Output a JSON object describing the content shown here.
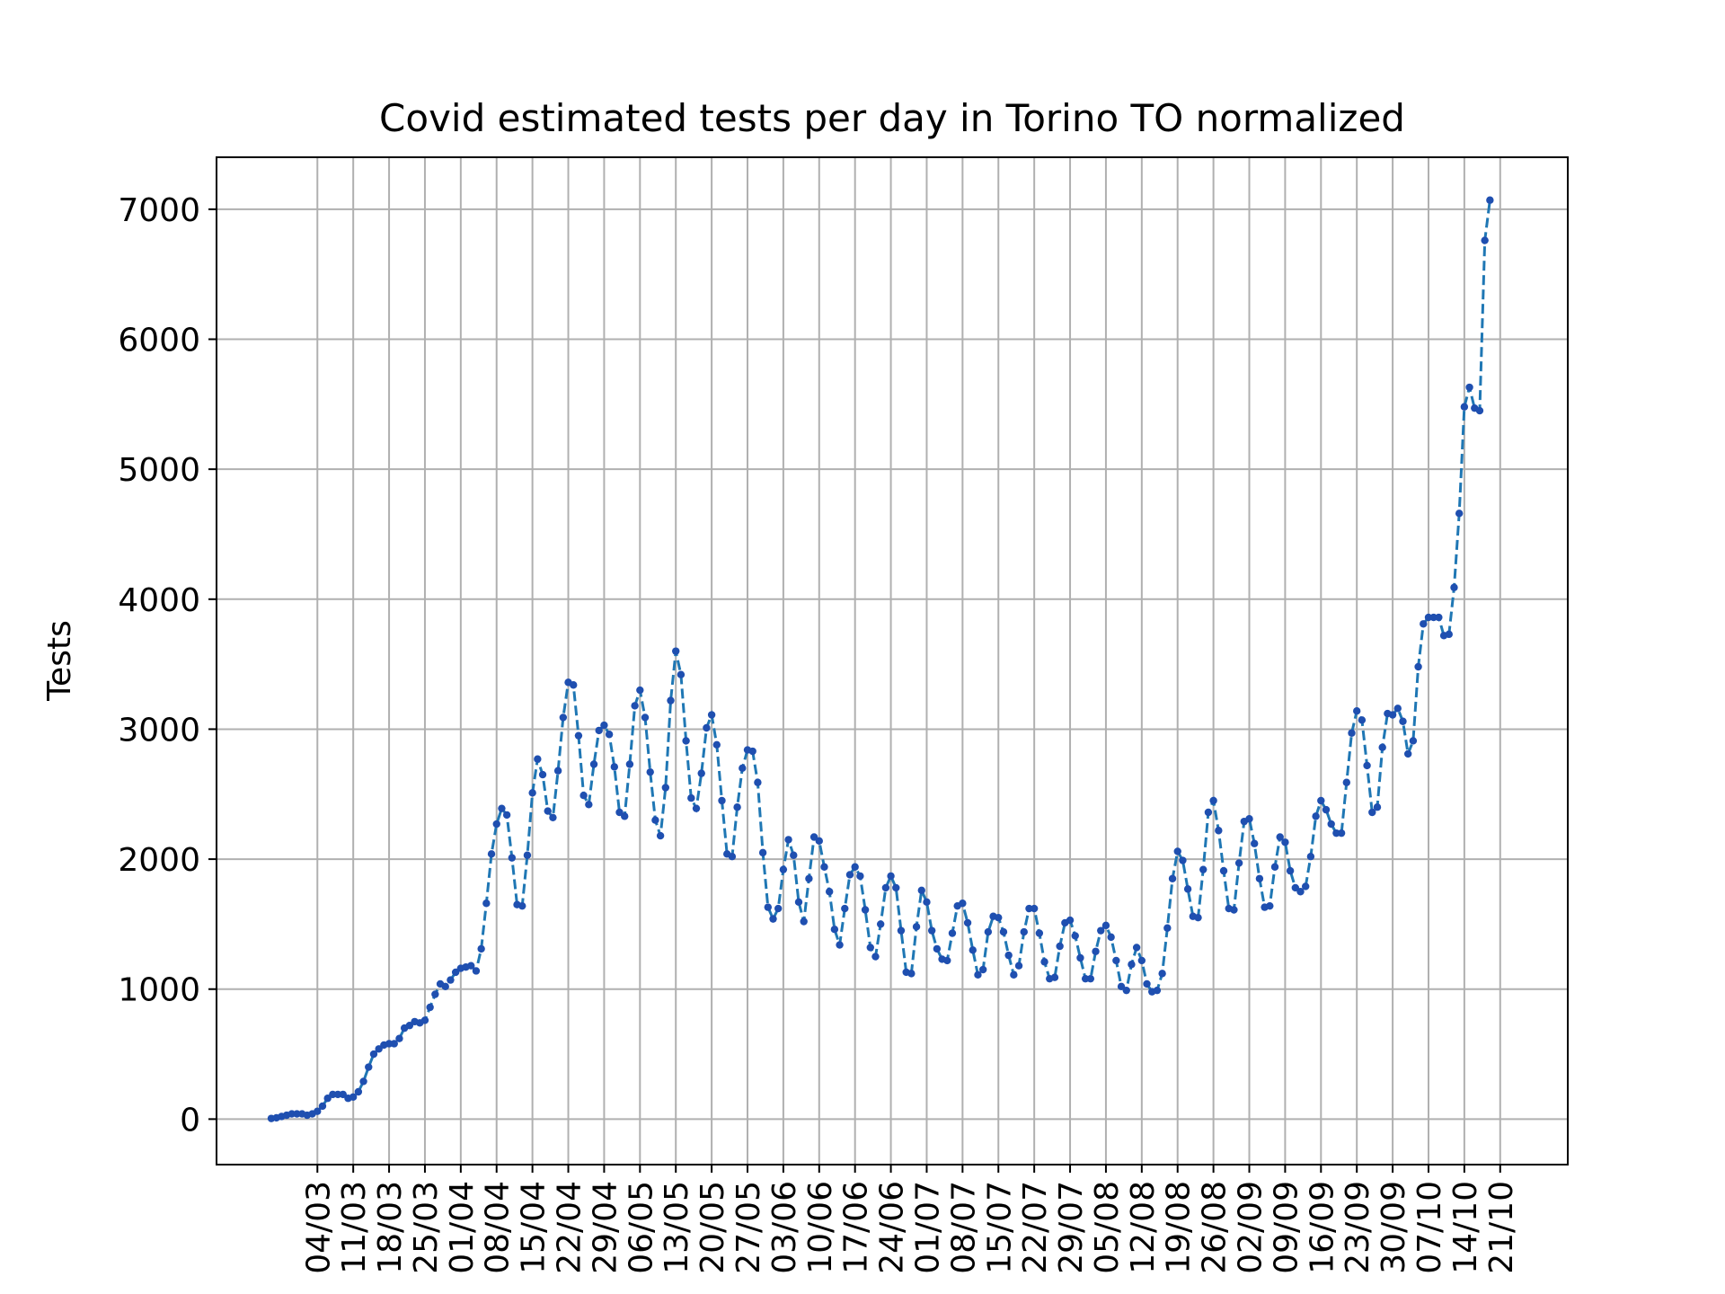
{
  "chart_data": {
    "type": "line",
    "title": "Covid estimated tests per day in Torino TO normalized",
    "xlabel": "",
    "ylabel": "Tests",
    "start_date": "2020-02-24",
    "grid": true,
    "legend": "none",
    "ylim": [
      -350,
      7400
    ],
    "yticks": [
      0,
      1000,
      2000,
      3000,
      4000,
      5000,
      6000,
      7000
    ],
    "xtick_labels": [
      "04/03",
      "11/03",
      "18/03",
      "25/03",
      "01/04",
      "08/04",
      "15/04",
      "22/04",
      "29/04",
      "06/05",
      "13/05",
      "20/05",
      "27/05",
      "03/06",
      "10/06",
      "17/06",
      "24/06",
      "01/07",
      "08/07",
      "15/07",
      "22/07",
      "29/07",
      "05/08",
      "12/08",
      "19/08",
      "26/08",
      "02/09",
      "09/09",
      "16/09",
      "23/09",
      "30/09",
      "07/10",
      "14/10",
      "21/10"
    ],
    "colors": {
      "line": "#1f77b4",
      "marker": "#1f4fb0",
      "grid": "#b0b0b0"
    },
    "series": [
      {
        "values": [
          5,
          10,
          20,
          30,
          40,
          40,
          40,
          30,
          40,
          60,
          100,
          160,
          190,
          190,
          190,
          160,
          170,
          210,
          290,
          400,
          500,
          540,
          570,
          580,
          580,
          620,
          700,
          720,
          750,
          740,
          760,
          860,
          960,
          1040,
          1020,
          1070,
          1130,
          1160,
          1170,
          1180,
          1140,
          1310,
          1660,
          2040,
          2270,
          2390,
          2340,
          2010,
          1650,
          1640,
          2030,
          2510,
          2770,
          2650,
          2370,
          2320,
          2680,
          3090,
          3360,
          3340,
          2950,
          2490,
          2420,
          2730,
          2990,
          3030,
          2960,
          2710,
          2360,
          2330,
          2730,
          3180,
          3300,
          3090,
          2670,
          2300,
          2180,
          2550,
          3220,
          3600,
          3420,
          2910,
          2470,
          2390,
          2660,
          3010,
          3110,
          2880,
          2450,
          2040,
          2020,
          2400,
          2700,
          2840,
          2830,
          2590,
          2050,
          1630,
          1540,
          1620,
          1920,
          2150,
          2030,
          1670,
          1520,
          1850,
          2170,
          2140,
          1940,
          1750,
          1460,
          1340,
          1620,
          1880,
          1940,
          1870,
          1610,
          1320,
          1250,
          1500,
          1780,
          1870,
          1780,
          1450,
          1130,
          1120,
          1480,
          1760,
          1670,
          1450,
          1310,
          1230,
          1220,
          1430,
          1640,
          1660,
          1510,
          1300,
          1110,
          1150,
          1440,
          1560,
          1550,
          1440,
          1260,
          1110,
          1180,
          1440,
          1620,
          1620,
          1430,
          1210,
          1080,
          1090,
          1330,
          1510,
          1530,
          1410,
          1240,
          1080,
          1080,
          1290,
          1450,
          1490,
          1400,
          1220,
          1020,
          990,
          1190,
          1320,
          1220,
          1040,
          980,
          990,
          1120,
          1470,
          1850,
          2060,
          1990,
          1770,
          1560,
          1550,
          1920,
          2360,
          2450,
          2220,
          1910,
          1620,
          1610,
          1970,
          2290,
          2310,
          2120,
          1850,
          1630,
          1640,
          1940,
          2170,
          2130,
          1910,
          1780,
          1750,
          1790,
          2020,
          2330,
          2450,
          2380,
          2270,
          2200,
          2200,
          2590,
          2970,
          3140,
          3070,
          2720,
          2360,
          2400,
          2860,
          3120,
          3110,
          3160,
          3060,
          2810,
          2910,
          3480,
          3810,
          3860,
          3860,
          3860,
          3720,
          3730,
          4090,
          4660,
          5480,
          5630,
          5470,
          5450,
          6760,
          7070
        ]
      }
    ]
  }
}
